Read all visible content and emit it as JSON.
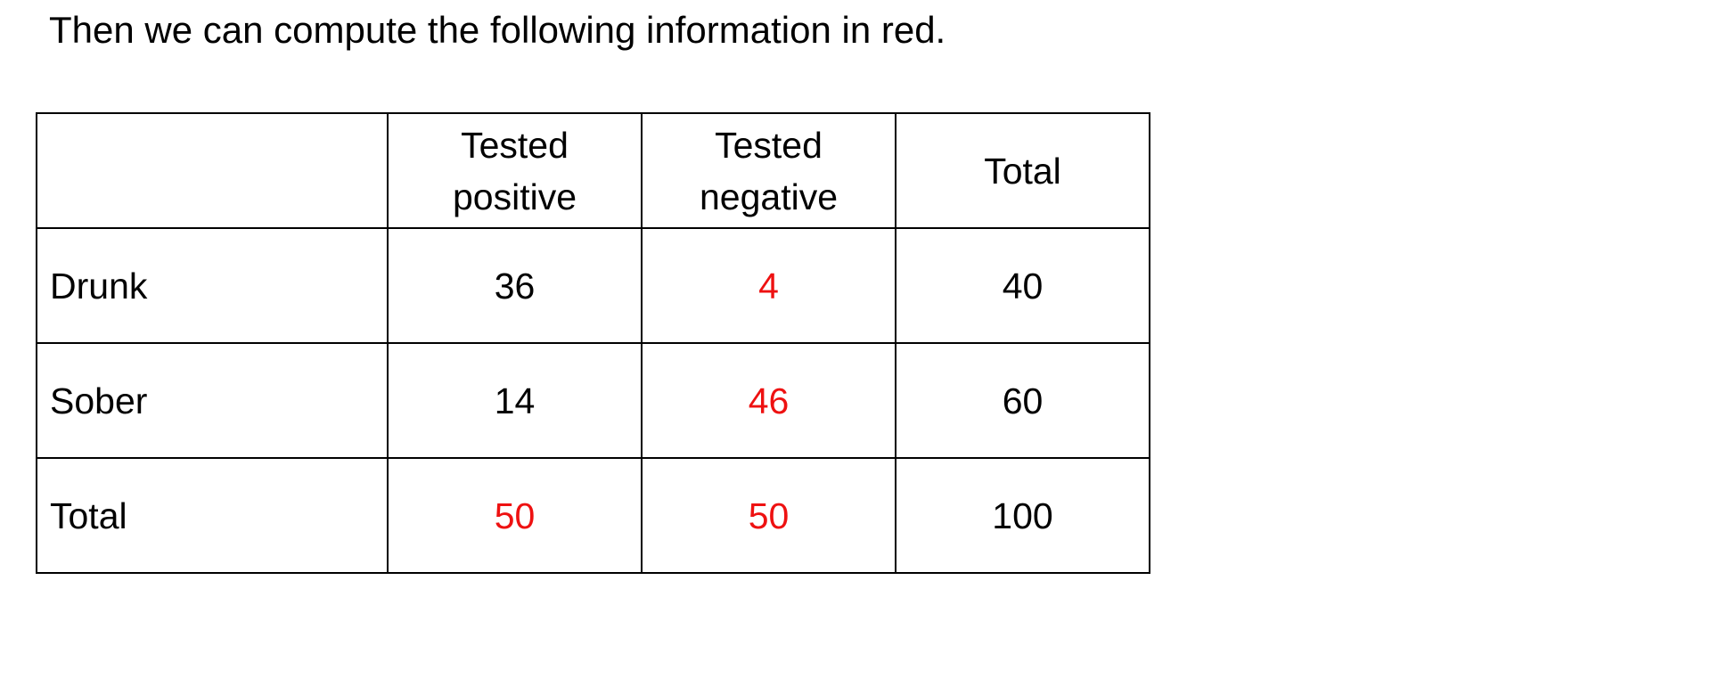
{
  "intro_text": "Then we can compute the following information in red.",
  "accent_color": "#ee1111",
  "table": {
    "headers": [
      "",
      "Tested positive",
      "Tested negative",
      "Total"
    ],
    "header_lines": {
      "tested_positive": [
        "Tested",
        "positive"
      ],
      "tested_negative": [
        "Tested",
        "negative"
      ],
      "total": "Total"
    },
    "rows": [
      {
        "label": "Drunk",
        "tested_positive": "36",
        "tested_negative": "4",
        "total": "40"
      },
      {
        "label": "Sober",
        "tested_positive": "14",
        "tested_negative": "46",
        "total": "60"
      },
      {
        "label": "Total",
        "tested_positive": "50",
        "tested_negative": "50",
        "total": "100"
      }
    ],
    "computed_cells_in_red": [
      "Drunk.tested_negative",
      "Sober.tested_negative",
      "Total.tested_positive",
      "Total.tested_negative"
    ]
  }
}
